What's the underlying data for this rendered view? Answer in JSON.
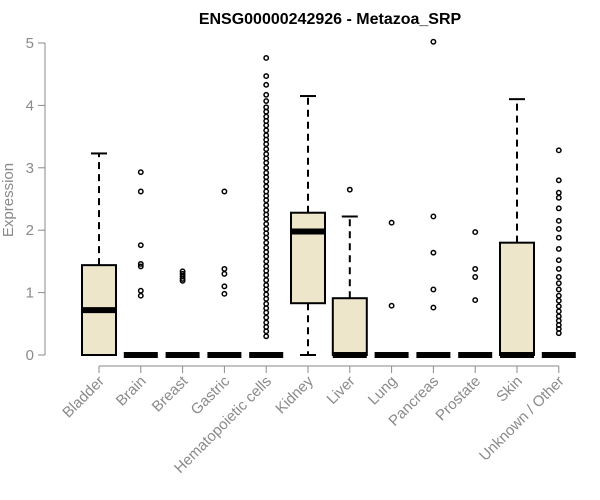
{
  "chart_data": {
    "type": "boxplot",
    "title": "ENSG00000242926 - Metazoa_SRP",
    "xlabel": "",
    "ylabel": "Expression",
    "ylim": [
      0,
      5
    ],
    "yticks": [
      0,
      1,
      2,
      3,
      4,
      5
    ],
    "box_color": "#ede6cb",
    "categories": [
      "Bladder",
      "Brain",
      "Breast",
      "Gastric",
      "Hematopoietic cells",
      "Kidney",
      "Liver",
      "Lung",
      "Pancreas",
      "Prostate",
      "Skin",
      "Unknown / Other"
    ],
    "boxes": [
      {
        "category": "Bladder",
        "q1": 0,
        "median": 0.72,
        "q3": 1.44,
        "whisker_low": 0,
        "whisker_high": 3.23,
        "outliers": []
      },
      {
        "category": "Brain",
        "q1": 0,
        "median": 0,
        "q3": 0,
        "whisker_low": 0,
        "whisker_high": 0,
        "outliers": [
          0.95,
          1.03,
          1.42,
          1.46,
          1.76,
          2.62,
          2.93
        ]
      },
      {
        "category": "Breast",
        "q1": 0,
        "median": 0,
        "q3": 0,
        "whisker_low": 0,
        "whisker_high": 0,
        "outliers": [
          1.19,
          1.22,
          1.26,
          1.3,
          1.34
        ]
      },
      {
        "category": "Gastric",
        "q1": 0,
        "median": 0,
        "q3": 0,
        "whisker_low": 0,
        "whisker_high": 0,
        "outliers": [
          0.98,
          1.1,
          1.3,
          1.38,
          2.62
        ]
      },
      {
        "category": "Hematopoietic cells",
        "q1": 0,
        "median": 0,
        "q3": 0,
        "whisker_low": 0,
        "whisker_high": 0,
        "outliers": [
          0.3,
          0.38,
          0.45,
          0.52,
          0.6,
          0.68,
          0.75,
          0.82,
          0.9,
          0.97,
          1.05,
          1.12,
          1.2,
          1.28,
          1.35,
          1.42,
          1.5,
          1.58,
          1.65,
          1.72,
          1.8,
          1.88,
          1.95,
          2.02,
          2.1,
          2.18,
          2.25,
          2.32,
          2.4,
          2.48,
          2.55,
          2.62,
          2.7,
          2.78,
          2.85,
          2.92,
          3.0,
          3.08,
          3.15,
          3.22,
          3.3,
          3.38,
          3.45,
          3.52,
          3.6,
          3.68,
          3.75,
          3.82,
          3.9,
          3.97,
          4.07,
          4.17,
          4.33,
          4.47,
          4.76
        ]
      },
      {
        "category": "Kidney",
        "q1": 0.83,
        "median": 1.98,
        "q3": 2.28,
        "whisker_low": 0,
        "whisker_high": 4.15,
        "outliers": []
      },
      {
        "category": "Liver",
        "q1": 0,
        "median": 0,
        "q3": 0.91,
        "whisker_low": 0,
        "whisker_high": 2.22,
        "outliers": [
          2.65
        ]
      },
      {
        "category": "Lung",
        "q1": 0,
        "median": 0,
        "q3": 0,
        "whisker_low": 0,
        "whisker_high": 0,
        "outliers": [
          0.79,
          2.12
        ]
      },
      {
        "category": "Pancreas",
        "q1": 0,
        "median": 0,
        "q3": 0,
        "whisker_low": 0,
        "whisker_high": 0,
        "outliers": [
          0.76,
          1.05,
          1.64,
          2.22,
          5.02
        ]
      },
      {
        "category": "Prostate",
        "q1": 0,
        "median": 0,
        "q3": 0,
        "whisker_low": 0,
        "whisker_high": 0,
        "outliers": [
          0.88,
          1.25,
          1.38,
          1.97
        ]
      },
      {
        "category": "Skin",
        "q1": 0,
        "median": 0,
        "q3": 1.8,
        "whisker_low": 0,
        "whisker_high": 4.1,
        "outliers": []
      },
      {
        "category": "Unknown / Other",
        "q1": 0,
        "median": 0,
        "q3": 0,
        "whisker_low": 0,
        "whisker_high": 0,
        "outliers": [
          0.35,
          0.42,
          0.48,
          0.55,
          0.62,
          0.7,
          0.78,
          0.87,
          0.95,
          1.05,
          1.15,
          1.25,
          1.38,
          1.52,
          1.7,
          1.88,
          2.02,
          2.15,
          2.35,
          2.52,
          2.6,
          2.8,
          3.28
        ]
      }
    ]
  }
}
